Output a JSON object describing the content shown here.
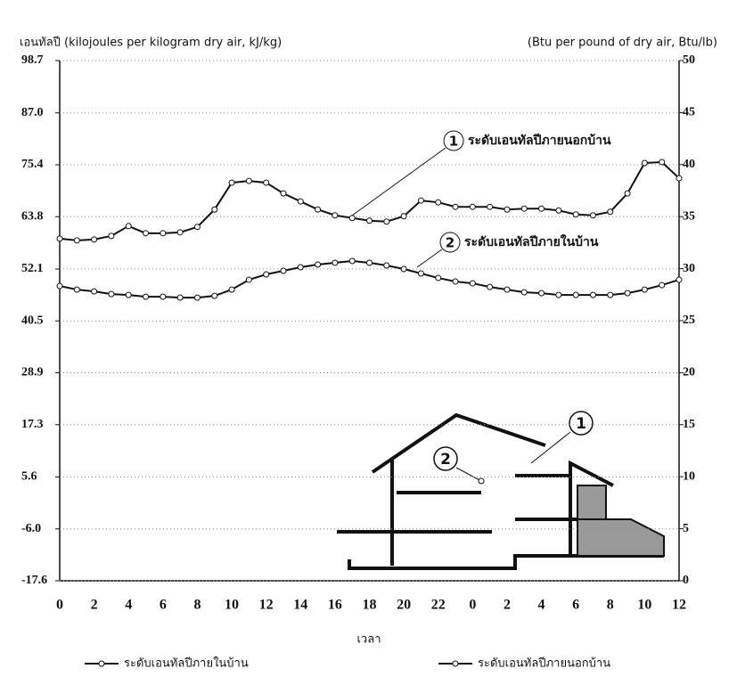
{
  "chart_data": {
    "type": "line",
    "y_label": "เอนทัลปี (kilojoules per kilogram dry air, kJ/kg)",
    "y2_label": "(Btu per pound of dry air, Btu/lb)",
    "x_label": "เวลา",
    "categories": [
      "0",
      null,
      "2",
      null,
      "4",
      null,
      "6",
      null,
      "8",
      null,
      "10",
      null,
      "12",
      null,
      "14",
      null,
      "16",
      null,
      "18",
      null,
      "20",
      null,
      "22",
      null,
      "0",
      null,
      "2",
      null,
      "4",
      null,
      "6",
      null,
      "8",
      null,
      "10",
      null,
      "12"
    ],
    "series": [
      {
        "name": "ระดับเอนทัลปีภายในบ้าน",
        "color": "#111111",
        "values": [
          48.3,
          47.5,
          47.1,
          46.5,
          46.3,
          45.9,
          45.9,
          45.7,
          45.7,
          46.1,
          47.5,
          49.7,
          50.9,
          51.7,
          52.5,
          53.1,
          53.5,
          53.9,
          53.5,
          52.9,
          52.1,
          51.1,
          50.1,
          49.3,
          48.9,
          48.1,
          47.5,
          46.9,
          46.7,
          46.3,
          46.3,
          46.3,
          46.3,
          46.7,
          47.5,
          48.5,
          49.7
        ]
      },
      {
        "name": "ระดับเอนทัลปีภายนอกบ้าน",
        "color": "#111111",
        "values": [
          58.9,
          58.5,
          58.7,
          59.5,
          61.7,
          60.1,
          60.1,
          60.3,
          61.5,
          65.4,
          71.4,
          71.8,
          71.4,
          69.0,
          67.2,
          65.4,
          64.1,
          63.5,
          62.9,
          62.7,
          63.9,
          67.4,
          67.0,
          66.0,
          66.0,
          66.0,
          65.4,
          65.6,
          65.6,
          65.2,
          64.3,
          64.1,
          64.9,
          69.0,
          75.8,
          76.0,
          72.4
        ]
      }
    ],
    "ylim": [
      -17.6,
      98.7
    ],
    "yticks": [
      -17.6,
      {
        "value": -6.0,
        "label": "-6.0"
      },
      5.6,
      17.3,
      28.9,
      40.5,
      52.1,
      63.8,
      75.4,
      {
        "value": 87.0,
        "label": "87.0"
      },
      98.7
    ],
    "y2lim": [
      0,
      50
    ],
    "y2ticks": [
      0,
      5,
      10,
      15,
      20,
      25,
      30,
      35,
      40,
      45,
      50
    ],
    "grid": true,
    "annotations": [
      {
        "number": "1",
        "text": "ระดับเอนทัลปีภายนอกบ้าน"
      },
      {
        "number": "2",
        "text": "ระดับเอนทัลปีภายในบ้าน"
      }
    ],
    "inset_labels": [
      "1",
      "2"
    ]
  }
}
